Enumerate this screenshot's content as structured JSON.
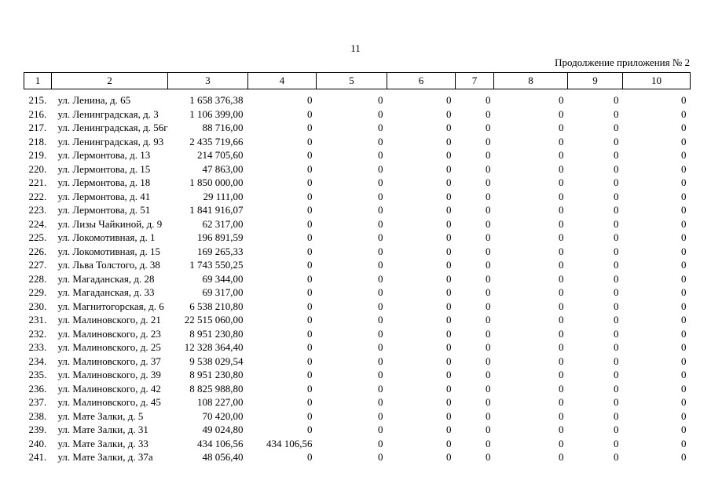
{
  "page": {
    "number": "11",
    "continuation": "Продолжение приложения № 2"
  },
  "table": {
    "headers": [
      "1",
      "2",
      "3",
      "4",
      "5",
      "6",
      "7",
      "8",
      "9",
      "10"
    ],
    "rows": [
      [
        "215.",
        "ул. Ленина, д. 65",
        "1 658 376,38",
        "0",
        "0",
        "0",
        "0",
        "0",
        "0",
        "0"
      ],
      [
        "216.",
        "ул. Ленинградская, д. 3",
        "1 106 399,00",
        "0",
        "0",
        "0",
        "0",
        "0",
        "0",
        "0"
      ],
      [
        "217.",
        "ул. Ленинградская, д. 56г",
        "88 716,00",
        "0",
        "0",
        "0",
        "0",
        "0",
        "0",
        "0"
      ],
      [
        "218.",
        "ул. Ленинградская, д. 93",
        "2 435 719,66",
        "0",
        "0",
        "0",
        "0",
        "0",
        "0",
        "0"
      ],
      [
        "219.",
        "ул. Лермонтова, д. 13",
        "214 705,60",
        "0",
        "0",
        "0",
        "0",
        "0",
        "0",
        "0"
      ],
      [
        "220.",
        "ул. Лермонтова, д. 15",
        "47 863,00",
        "0",
        "0",
        "0",
        "0",
        "0",
        "0",
        "0"
      ],
      [
        "221.",
        "ул. Лермонтова, д. 18",
        "1 850 000,00",
        "0",
        "0",
        "0",
        "0",
        "0",
        "0",
        "0"
      ],
      [
        "222.",
        "ул. Лермонтова, д. 41",
        "29 111,00",
        "0",
        "0",
        "0",
        "0",
        "0",
        "0",
        "0"
      ],
      [
        "223.",
        "ул. Лермонтова, д. 51",
        "1 841 916,07",
        "0",
        "0",
        "0",
        "0",
        "0",
        "0",
        "0"
      ],
      [
        "224.",
        "ул. Лизы Чайкиной, д. 9",
        "62 317,00",
        "0",
        "0",
        "0",
        "0",
        "0",
        "0",
        "0"
      ],
      [
        "225.",
        "ул. Локомотивная, д. 1",
        "196 891,59",
        "0",
        "0",
        "0",
        "0",
        "0",
        "0",
        "0"
      ],
      [
        "226.",
        "ул. Локомотивная, д. 15",
        "169 265,33",
        "0",
        "0",
        "0",
        "0",
        "0",
        "0",
        "0"
      ],
      [
        "227.",
        "ул. Льва Толстого, д. 38",
        "1 743 550,25",
        "0",
        "0",
        "0",
        "0",
        "0",
        "0",
        "0"
      ],
      [
        "228.",
        "ул. Магаданская, д. 28",
        "69 344,00",
        "0",
        "0",
        "0",
        "0",
        "0",
        "0",
        "0"
      ],
      [
        "229.",
        "ул. Магаданская, д. 33",
        "69 317,00",
        "0",
        "0",
        "0",
        "0",
        "0",
        "0",
        "0"
      ],
      [
        "230.",
        "ул. Магнитогорская,\nд. 6",
        "6 538 210,80",
        "0",
        "0",
        "0",
        "0",
        "0",
        "0",
        "0"
      ],
      [
        "231.",
        "ул. Малиновского, д. 21",
        "22 515 060,00",
        "0",
        "0",
        "0",
        "0",
        "0",
        "0",
        "0"
      ],
      [
        "232.",
        "ул. Малиновского, д. 23",
        "8 951 230,80",
        "0",
        "0",
        "0",
        "0",
        "0",
        "0",
        "0"
      ],
      [
        "233.",
        "ул. Малиновского, д. 25",
        "12 328 364,40",
        "0",
        "0",
        "0",
        "0",
        "0",
        "0",
        "0"
      ],
      [
        "234.",
        "ул. Малиновского, д. 37",
        "9 538 029,54",
        "0",
        "0",
        "0",
        "0",
        "0",
        "0",
        "0"
      ],
      [
        "235.",
        "ул. Малиновского, д. 39",
        "8 951 230,80",
        "0",
        "0",
        "0",
        "0",
        "0",
        "0",
        "0"
      ],
      [
        "236.",
        "ул. Малиновского, д. 42",
        "8 825 988,80",
        "0",
        "0",
        "0",
        "0",
        "0",
        "0",
        "0"
      ],
      [
        "237.",
        "ул. Малиновского, д. 45",
        "108 227,00",
        "0",
        "0",
        "0",
        "0",
        "0",
        "0",
        "0"
      ],
      [
        "238.",
        "ул. Мате Залки, д. 5",
        "70 420,00",
        "0",
        "0",
        "0",
        "0",
        "0",
        "0",
        "0"
      ],
      [
        "239.",
        "ул. Мате Залки, д. 31",
        "49 024,80",
        "0",
        "0",
        "0",
        "0",
        "0",
        "0",
        "0"
      ],
      [
        "240.",
        "ул. Мате Залки, д. 33",
        "434 106,56",
        "434 106,56",
        "0",
        "0",
        "0",
        "0",
        "0",
        "0"
      ],
      [
        "241.",
        "ул. Мате Залки, д. 37а",
        "48 056,40",
        "0",
        "0",
        "0",
        "0",
        "0",
        "0",
        "0"
      ]
    ],
    "cell_names": [
      "row-number",
      "address",
      "amount",
      "col-4-value",
      "col-5-value",
      "col-6-value",
      "col-7-value",
      "col-8-value",
      "col-9-value",
      "col-10-value"
    ]
  }
}
